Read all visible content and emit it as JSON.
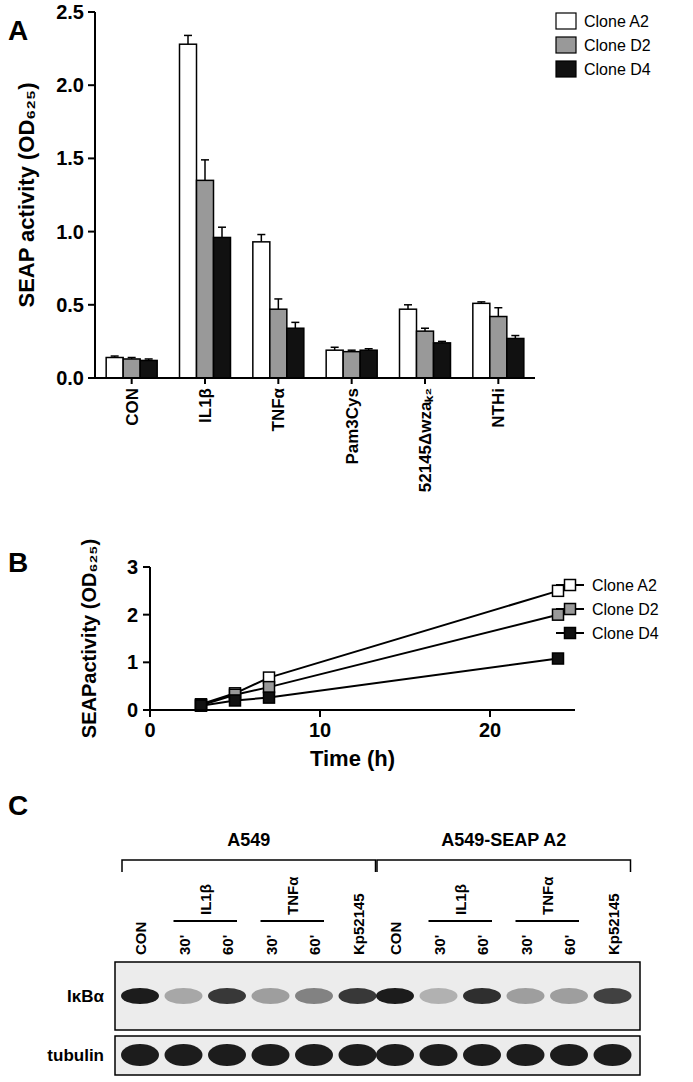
{
  "chart_data": [
    {
      "type": "bar",
      "title": "A",
      "y_label": "SEAP activity (OD₆₂₅)",
      "categories": [
        "CON",
        "IL1β",
        "TNFα",
        "Pam3Cys",
        "52145Δwzaₖ₂",
        "NTHi"
      ],
      "series": [
        {
          "name": "Clone A2",
          "color": "#ffffff",
          "values": [
            0.14,
            2.28,
            0.93,
            0.19,
            0.47,
            0.51
          ],
          "errors": [
            0.01,
            0.06,
            0.05,
            0.02,
            0.03,
            0.01
          ]
        },
        {
          "name": "Clone D2",
          "color": "#999999",
          "values": [
            0.13,
            1.35,
            0.47,
            0.18,
            0.32,
            0.42
          ],
          "errors": [
            0.01,
            0.14,
            0.07,
            0.01,
            0.02,
            0.06
          ]
        },
        {
          "name": "Clone D4",
          "color": "#111111",
          "values": [
            0.12,
            0.96,
            0.34,
            0.19,
            0.24,
            0.27
          ],
          "errors": [
            0.01,
            0.07,
            0.04,
            0.01,
            0.01,
            0.02
          ]
        }
      ],
      "ylim": [
        0,
        2.5
      ],
      "yticks": [
        {
          "value": 0,
          "label": "0.0"
        },
        {
          "value": 0.5,
          "label": "0.5"
        },
        {
          "value": 1,
          "label": "1.0"
        },
        {
          "value": 1.5,
          "label": "1.5"
        },
        {
          "value": 2,
          "label": "2.0"
        },
        {
          "value": 2.5,
          "label": "2.5"
        }
      ],
      "grid": false,
      "legend": "right"
    },
    {
      "type": "line",
      "title": "B",
      "x_label": "Time (h)",
      "y_label": "SEAPactivity (OD₆₂₅)",
      "x": [
        3,
        5,
        7,
        24
      ],
      "series": [
        {
          "name": "Clone A2",
          "color": "#ffffff",
          "values": [
            0.12,
            0.35,
            0.68,
            2.5
          ],
          "errors": [
            0.02,
            0.03,
            0.04,
            0.08
          ]
        },
        {
          "name": "Clone D2",
          "color": "#999999",
          "values": [
            0.1,
            0.32,
            0.48,
            2.0
          ],
          "errors": [
            0.01,
            0.02,
            0.03,
            0.04
          ]
        },
        {
          "name": "Clone D4",
          "color": "#111111",
          "values": [
            0.09,
            0.2,
            0.26,
            1.08
          ],
          "errors": [
            0.01,
            0.02,
            0.02,
            0.03
          ]
        }
      ],
      "xlim": [
        0,
        25
      ],
      "xticks": [
        0,
        10,
        20
      ],
      "ylim": [
        0,
        3
      ],
      "yticks": [
        0,
        1,
        2,
        3
      ],
      "marker": "square",
      "line_style": "solid",
      "grid": false,
      "legend": "right"
    }
  ],
  "blot": {
    "title": "C",
    "groups": [
      {
        "label": "A549",
        "lane_groups": [
          {
            "label": "CON",
            "times": []
          },
          {
            "label": "IL1β",
            "times": [
              "30'",
              "60'"
            ]
          },
          {
            "label": "TNFα",
            "times": [
              "30'",
              "60'"
            ]
          },
          {
            "label": "Kp52145",
            "times": []
          }
        ]
      },
      {
        "label": "A549-SEAP A2",
        "lane_groups": [
          {
            "label": "CON",
            "times": []
          },
          {
            "label": "IL1β",
            "times": [
              "30'",
              "60'"
            ]
          },
          {
            "label": "TNFα",
            "times": [
              "30'",
              "60'"
            ]
          },
          {
            "label": "Kp52145",
            "times": []
          }
        ]
      }
    ],
    "rows": [
      {
        "label": "IκBα",
        "intensity": [
          [
            1.0,
            0.25,
            0.85,
            0.3,
            0.45,
            0.85
          ],
          [
            1.0,
            0.2,
            0.9,
            0.3,
            0.3,
            0.8
          ]
        ]
      },
      {
        "label": "tubulin",
        "intensity": [
          [
            1.0,
            1.0,
            1.0,
            1.0,
            1.0,
            1.0
          ],
          [
            1.0,
            1.0,
            1.0,
            1.0,
            1.0,
            1.0
          ]
        ]
      }
    ]
  }
}
